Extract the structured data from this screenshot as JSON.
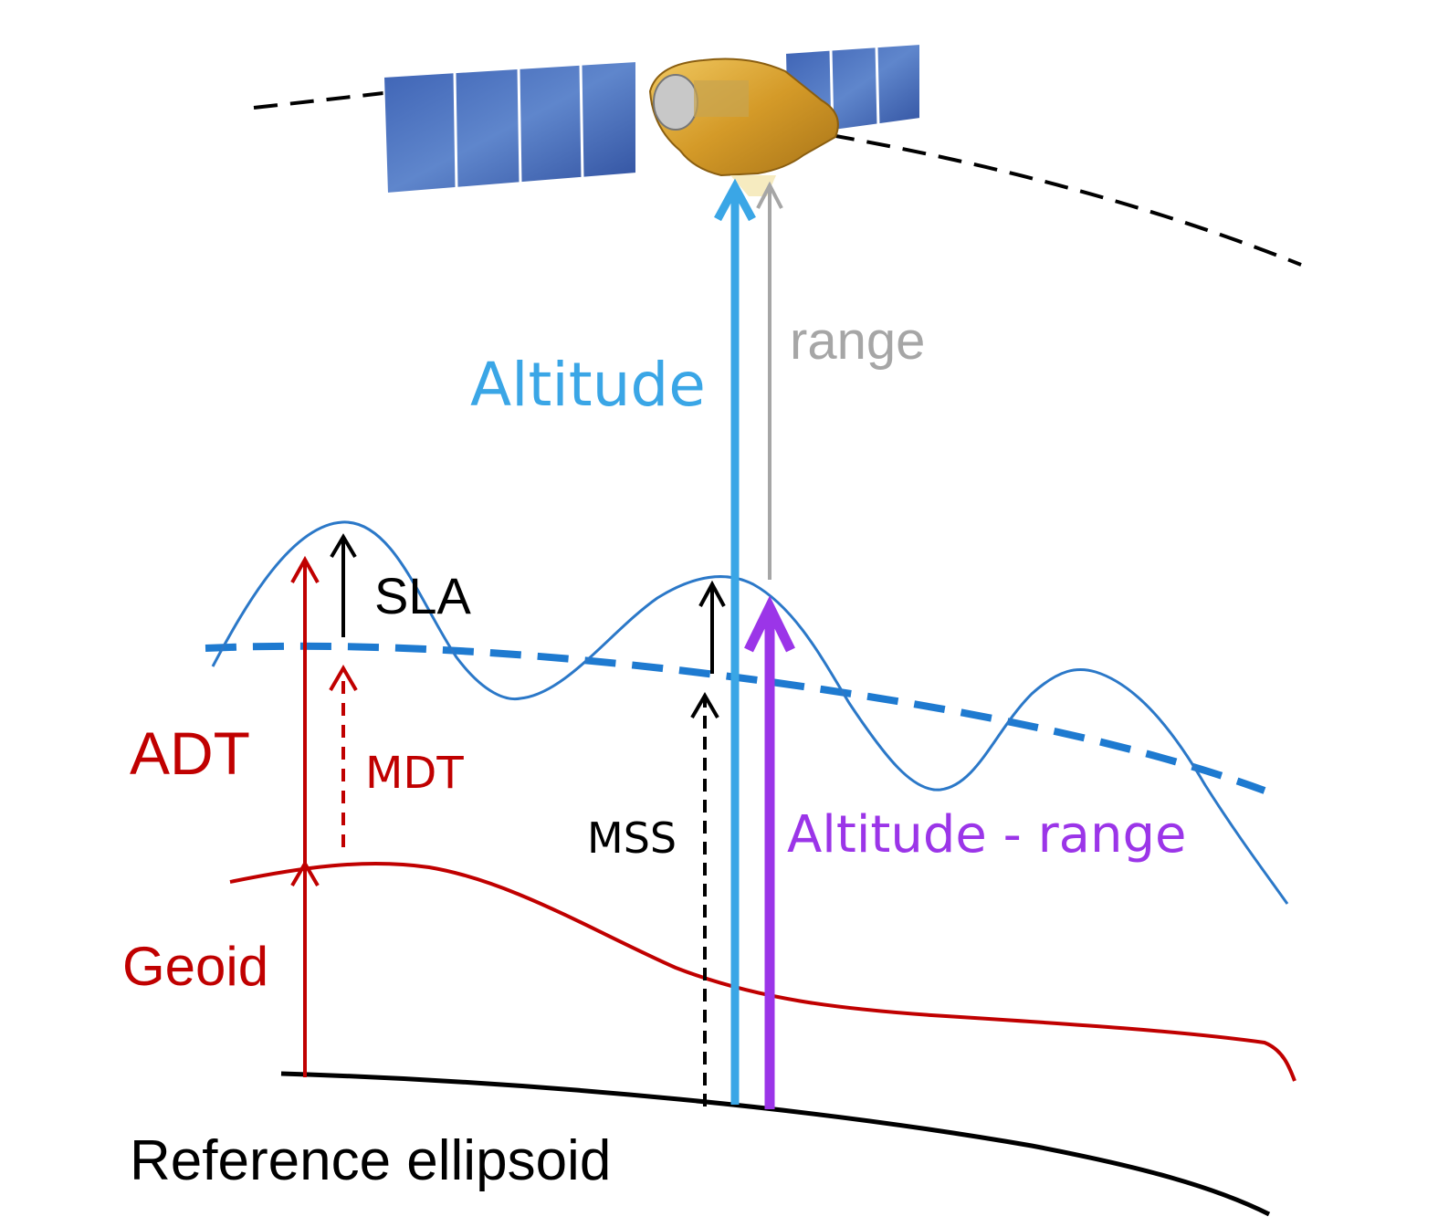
{
  "labels": {
    "altitude": "Altitude",
    "range": "range",
    "sla": "SLA",
    "adt": "ADT",
    "mdt": "MDT",
    "mss": "MSS",
    "altitude_minus_range": "Altitude - range",
    "geoid": "Geoid",
    "reference_ellipsoid": "Reference ellipsoid"
  },
  "colors": {
    "altitude": "#3aa6e6",
    "range": "#a6a6a6",
    "altitude_minus_range": "#9b35e8",
    "adt": "#c00000",
    "mdt": "#c00000",
    "geoid": "#c00000",
    "sea_surface": "#2b78c8",
    "mean_sea_surface": "#1e7ad0",
    "reference_ellipsoid": "#000000",
    "orbit": "#000000",
    "solar_panel": "#3a5fb0",
    "satellite_body": "#d9a232"
  }
}
